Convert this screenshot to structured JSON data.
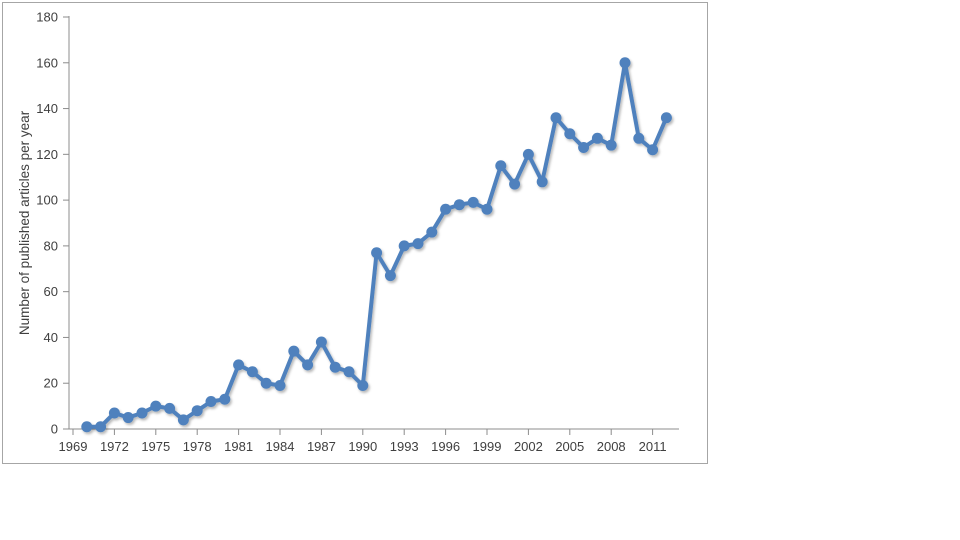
{
  "window": {
    "background_color": "#ffffff",
    "frame_border_color": "#a6a6a6"
  },
  "chart_data": {
    "type": "line",
    "title": "",
    "xlabel": "",
    "ylabel": "Number of published articles per year",
    "x": [
      1970,
      1971,
      1972,
      1973,
      1974,
      1975,
      1976,
      1977,
      1978,
      1979,
      1980,
      1981,
      1982,
      1983,
      1984,
      1985,
      1986,
      1987,
      1988,
      1989,
      1990,
      1991,
      1992,
      1993,
      1994,
      1995,
      1996,
      1997,
      1998,
      1999,
      2000,
      2001,
      2002,
      2003,
      2004,
      2005,
      2006,
      2007,
      2008,
      2009,
      2010,
      2011,
      2012
    ],
    "values": [
      1,
      1,
      7,
      5,
      7,
      10,
      9,
      4,
      8,
      12,
      13,
      28,
      25,
      20,
      19,
      34,
      28,
      38,
      27,
      25,
      19,
      77,
      67,
      80,
      81,
      86,
      96,
      98,
      99,
      96,
      115,
      107,
      120,
      108,
      136,
      129,
      123,
      127,
      124,
      160,
      127,
      122,
      136
    ],
    "xticks": [
      1969,
      1972,
      1975,
      1978,
      1981,
      1984,
      1987,
      1990,
      1993,
      1996,
      1999,
      2002,
      2005,
      2008,
      2011
    ],
    "yticks": [
      0,
      20,
      40,
      60,
      80,
      100,
      120,
      140,
      160,
      180
    ],
    "ylim": [
      0,
      180
    ],
    "grid": false,
    "legend": false,
    "line_color": "#4f81bd",
    "marker_color": "#4f81bd",
    "axis_color": "#8c8c8c",
    "text_color": "#404040"
  }
}
